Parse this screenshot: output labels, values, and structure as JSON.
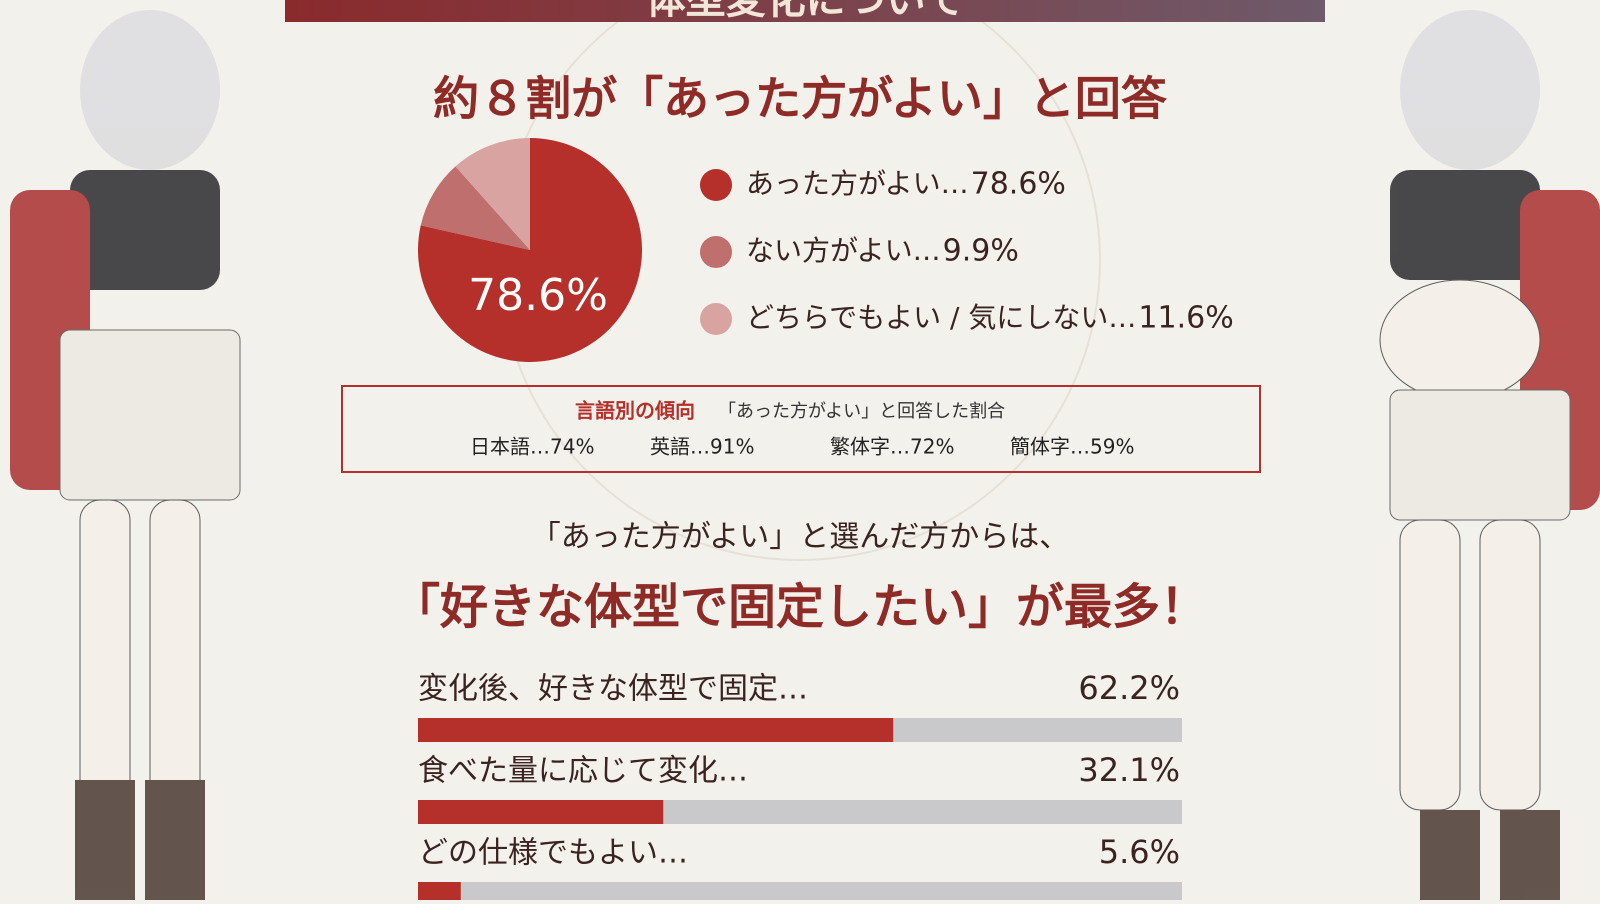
{
  "header": {
    "title": "体型変化について"
  },
  "chart_data": [
    {
      "type": "pie",
      "title": "約８割が「あった方がよい」と回答",
      "categories": [
        "あった方がよい…",
        "ない方がよい…",
        "どちらでもよい / 気にしない…"
      ],
      "values": [
        78.6,
        9.9,
        11.6
      ],
      "value_labels": [
        "78.6%",
        "9.9%",
        "11.6%"
      ],
      "colors": [
        "#b5302a",
        "#bf6f6d",
        "#d9a3a1"
      ]
    },
    {
      "type": "bar",
      "orientation": "horizontal",
      "title": "「好きな体型で固定したい」が最多！",
      "subtitle": "「あった方がよい」と選んだ方からは、",
      "categories": [
        "変化後、好きな体型で固定…",
        "食べた量に応じて変化…",
        "どの仕様でもよい…"
      ],
      "values": [
        62.2,
        32.1,
        5.6
      ],
      "value_labels": [
        "62.2%",
        "32.1%",
        "5.6%"
      ],
      "xlim": [
        0,
        100
      ],
      "color": "#b5302a",
      "track_color": "#c9c9cc"
    }
  ],
  "language_trend": {
    "title": "言語別の傾向",
    "subtitle": "「あった方がよい」と回答した割合",
    "items": [
      "日本語…74%",
      "英語…91%",
      "繁体字…72%",
      "簡体字…59%"
    ]
  }
}
